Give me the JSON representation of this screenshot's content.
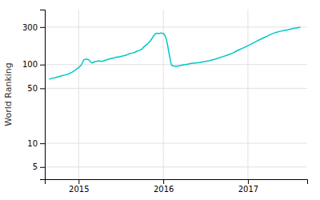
{
  "chart_data": {
    "type": "line",
    "ylabel": "World Ranking",
    "log": "y",
    "grid": true,
    "color": "#00c8c8",
    "xlim": [
      2014.6,
      2017.7
    ],
    "ylim": [
      3.5,
      500
    ],
    "xticks": [
      2015,
      2016,
      2017
    ],
    "yticks": [
      5,
      10,
      50,
      100,
      300
    ],
    "x": [
      2014.65,
      2014.68,
      2014.72,
      2014.76,
      2014.8,
      2014.84,
      2014.88,
      2014.92,
      2014.96,
      2015.0,
      2015.03,
      2015.06,
      2015.09,
      2015.12,
      2015.14,
      2015.16,
      2015.18,
      2015.21,
      2015.24,
      2015.27,
      2015.3,
      2015.33,
      2015.36,
      2015.39,
      2015.42,
      2015.45,
      2015.48,
      2015.51,
      2015.54,
      2015.57,
      2015.6,
      2015.63,
      2015.66,
      2015.69,
      2015.72,
      2015.75,
      2015.77,
      2015.79,
      2015.81,
      2015.83,
      2015.85,
      2015.87,
      2015.89,
      2015.91,
      2015.93,
      2015.95,
      2015.97,
      2015.99,
      2016.0,
      2016.01,
      2016.02,
      2016.03,
      2016.04,
      2016.05,
      2016.06,
      2016.07,
      2016.08,
      2016.09,
      2016.1,
      2016.12,
      2016.14,
      2016.17,
      2016.2,
      2016.23,
      2016.26,
      2016.3,
      2016.34,
      2016.38,
      2016.42,
      2016.46,
      2016.5,
      2016.54,
      2016.58,
      2016.62,
      2016.66,
      2016.7,
      2016.74,
      2016.78,
      2016.82,
      2016.86,
      2016.9,
      2016.94,
      2016.98,
      2017.02,
      2017.06,
      2017.1,
      2017.14,
      2017.18,
      2017.22,
      2017.26,
      2017.3,
      2017.34,
      2017.38,
      2017.42,
      2017.46,
      2017.5,
      2017.54,
      2017.58,
      2017.62
    ],
    "values": [
      65,
      67,
      68,
      70,
      72,
      74,
      76,
      80,
      85,
      92,
      98,
      115,
      118,
      115,
      108,
      105,
      108,
      110,
      112,
      110,
      112,
      115,
      118,
      120,
      122,
      125,
      125,
      128,
      130,
      133,
      138,
      140,
      143,
      148,
      152,
      158,
      168,
      175,
      182,
      192,
      202,
      218,
      235,
      248,
      250,
      248,
      252,
      250,
      248,
      242,
      235,
      220,
      200,
      178,
      155,
      135,
      118,
      105,
      98,
      96,
      95,
      96,
      97,
      99,
      100,
      102,
      104,
      105,
      106,
      108,
      110,
      112,
      115,
      118,
      122,
      126,
      130,
      135,
      140,
      148,
      155,
      162,
      170,
      178,
      188,
      198,
      208,
      218,
      228,
      240,
      250,
      258,
      265,
      270,
      275,
      282,
      288,
      293,
      298
    ]
  }
}
